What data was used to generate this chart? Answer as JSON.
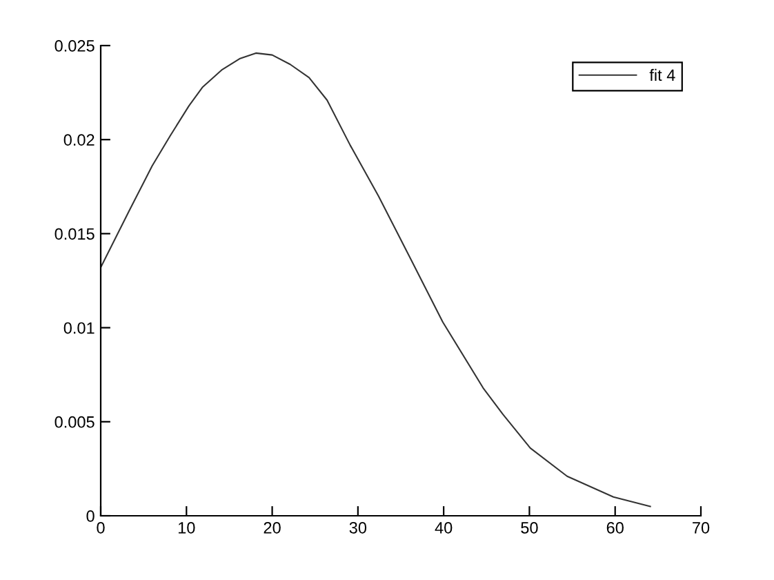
{
  "chart_data": {
    "type": "line",
    "x": [
      0,
      3.3,
      6.0,
      8.1,
      10.3,
      11.9,
      14.1,
      16.2,
      18.1,
      20.0,
      22.1,
      24.3,
      26.4,
      29.1,
      32.4,
      36.1,
      39.9,
      44.6,
      46.9,
      50.1,
      54.4,
      59.8,
      64.1
    ],
    "series": [
      {
        "name": "fit 4",
        "color": "#333333",
        "values": [
          0.0132,
          0.0162,
          0.0186,
          0.0202,
          0.0218,
          0.0228,
          0.0237,
          0.0243,
          0.0246,
          0.0245,
          0.024,
          0.0233,
          0.0221,
          0.0197,
          0.017,
          0.0137,
          0.0103,
          0.0068,
          0.0054,
          0.0036,
          0.0021,
          0.001,
          0.0005
        ]
      }
    ],
    "xlim": [
      0,
      70
    ],
    "xticks": [
      0,
      10,
      20,
      30,
      40,
      50,
      60,
      70
    ],
    "ylim": [
      0,
      0.025
    ],
    "yticks": [
      0,
      0.005,
      0.01,
      0.015,
      0.02,
      0.025
    ],
    "grid": false,
    "legend": "top right",
    "line_style": "solid"
  }
}
